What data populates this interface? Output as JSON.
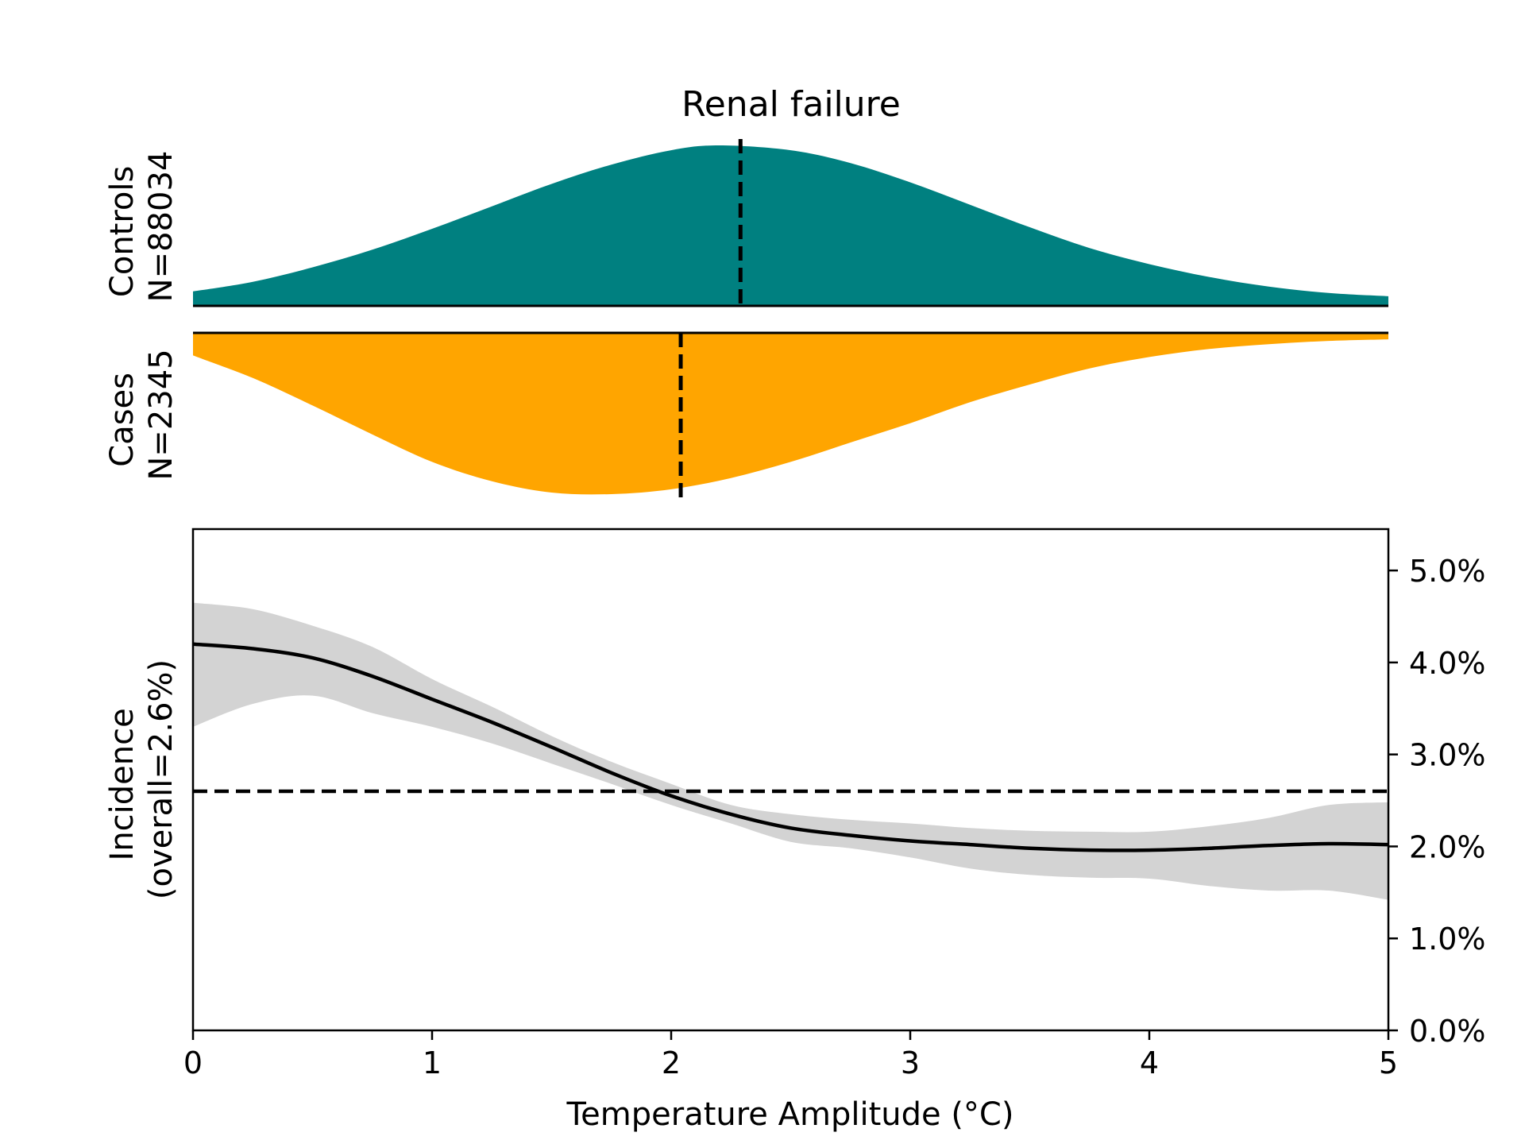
{
  "chart_data": [
    {
      "type": "area",
      "title": "Renal failure",
      "label_line1": "Controls",
      "label_line2": "N=88034",
      "color": "#008080",
      "median_x": 2.29,
      "x": [
        0,
        0.25,
        0.5,
        0.75,
        1.0,
        1.25,
        1.5,
        1.75,
        2.0,
        2.2,
        2.5,
        2.75,
        3.0,
        3.25,
        3.5,
        3.75,
        4.0,
        4.25,
        4.5,
        4.75,
        5.0
      ],
      "density": [
        0.09,
        0.15,
        0.24,
        0.35,
        0.48,
        0.62,
        0.76,
        0.88,
        0.97,
        1.0,
        0.97,
        0.89,
        0.77,
        0.63,
        0.49,
        0.36,
        0.26,
        0.18,
        0.12,
        0.08,
        0.06
      ]
    },
    {
      "type": "area",
      "label_line1": "Cases",
      "label_line2": "N=2345",
      "color": "#FFA500",
      "median_x": 2.04,
      "x": [
        0,
        0.25,
        0.5,
        0.75,
        1.0,
        1.25,
        1.5,
        1.75,
        2.0,
        2.25,
        2.5,
        2.75,
        3.0,
        3.25,
        3.5,
        3.75,
        4.0,
        4.25,
        4.5,
        4.75,
        5.0
      ],
      "density": [
        0.14,
        0.28,
        0.45,
        0.63,
        0.8,
        0.92,
        0.99,
        1.0,
        0.97,
        0.9,
        0.8,
        0.68,
        0.56,
        0.43,
        0.32,
        0.22,
        0.15,
        0.1,
        0.07,
        0.05,
        0.04
      ]
    },
    {
      "type": "line",
      "xlabel": "Temperature Amplitude (°C)",
      "ylabel_line1": "Incidence",
      "ylabel_line2": "(overall=2.6%)",
      "xlim": [
        0,
        5
      ],
      "ylim": [
        0,
        5.45
      ],
      "xticks": [
        0,
        1,
        2,
        3,
        4,
        5
      ],
      "yticks": [
        0,
        1,
        2,
        3,
        4,
        5
      ],
      "ytick_labels": [
        "0.0%",
        "1.0%",
        "2.0%",
        "3.0%",
        "4.0%",
        "5.0%"
      ],
      "y_axis_side": "right",
      "overall": 2.6,
      "line_color": "#000000",
      "band_color": "#d3d3d3",
      "x": [
        0,
        0.25,
        0.5,
        0.75,
        1.0,
        1.25,
        1.5,
        1.75,
        2.0,
        2.25,
        2.5,
        2.75,
        3.0,
        3.25,
        3.5,
        3.75,
        4.0,
        4.25,
        4.5,
        4.75,
        5.0
      ],
      "y": [
        4.2,
        4.15,
        4.05,
        3.85,
        3.6,
        3.35,
        3.08,
        2.8,
        2.55,
        2.35,
        2.2,
        2.12,
        2.06,
        2.02,
        1.98,
        1.96,
        1.96,
        1.98,
        2.01,
        2.03,
        2.02
      ],
      "upper": [
        4.65,
        4.58,
        4.4,
        4.17,
        3.82,
        3.52,
        3.2,
        2.92,
        2.68,
        2.45,
        2.35,
        2.29,
        2.25,
        2.2,
        2.17,
        2.16,
        2.16,
        2.22,
        2.31,
        2.45,
        2.48
      ],
      "lower": [
        3.3,
        3.55,
        3.64,
        3.45,
        3.3,
        3.12,
        2.9,
        2.68,
        2.45,
        2.25,
        2.05,
        1.98,
        1.88,
        1.76,
        1.69,
        1.66,
        1.65,
        1.57,
        1.52,
        1.52,
        1.42
      ]
    }
  ]
}
